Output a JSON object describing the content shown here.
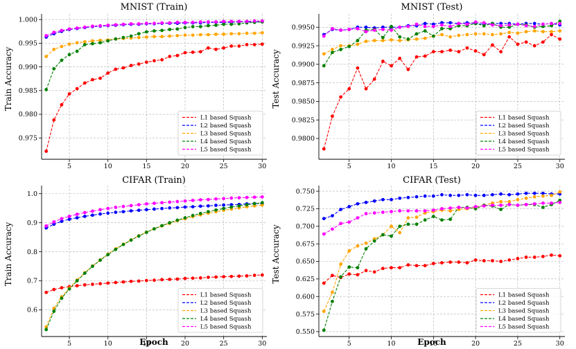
{
  "colors": {
    "L1": "#ff0000",
    "L2": "#0000ff",
    "L3": "#ffa500",
    "L4": "#008000",
    "L5": "#ff00ff",
    "grid": "#b0b0b0"
  },
  "chart_data": [
    {
      "type": "line",
      "title": "MNIST (Train)",
      "xlabel": "",
      "ylabel": "Train Accuracy",
      "xlim": [
        1.4,
        30.6
      ],
      "ylim": [
        0.9705,
        1.0012
      ],
      "xticks": [
        5,
        10,
        15,
        20,
        25,
        30
      ],
      "yticks": [
        0.975,
        0.98,
        0.985,
        0.99,
        0.995,
        1.0
      ],
      "ytick_decimals": 3,
      "grid": true,
      "legend_position": "lower-right",
      "x": [
        2,
        3,
        4,
        5,
        6,
        7,
        8,
        9,
        10,
        11,
        12,
        13,
        14,
        15,
        16,
        17,
        18,
        19,
        20,
        21,
        22,
        23,
        24,
        25,
        26,
        27,
        28,
        29,
        30
      ],
      "series": [
        {
          "name": "L1 based Squash",
          "color_key": "L1",
          "values": [
            0.9722,
            0.9788,
            0.982,
            0.9843,
            0.9854,
            0.9866,
            0.9873,
            0.9876,
            0.9887,
            0.9895,
            0.9898,
            0.9903,
            0.9906,
            0.991,
            0.9913,
            0.9915,
            0.9922,
            0.9924,
            0.993,
            0.9931,
            0.9932,
            0.994,
            0.9937,
            0.994,
            0.9944,
            0.9944,
            0.9947,
            0.9947,
            0.9948
          ]
        },
        {
          "name": "L2 based Squash",
          "color_key": "L2",
          "values": [
            0.9963,
            0.997,
            0.9975,
            0.9979,
            0.9981,
            0.9983,
            0.9985,
            0.9986,
            0.9987,
            0.9988,
            0.9989,
            0.999,
            0.999,
            0.9991,
            0.9991,
            0.9992,
            0.9992,
            0.9992,
            0.9993,
            0.9993,
            0.9993,
            0.9994,
            0.9994,
            0.9994,
            0.9994,
            0.9995,
            0.9995,
            0.9995,
            0.9995
          ]
        },
        {
          "name": "L3 based Squash",
          "color_key": "L3",
          "values": [
            0.9922,
            0.9937,
            0.9943,
            0.9948,
            0.9951,
            0.9953,
            0.9955,
            0.9956,
            0.9957,
            0.9959,
            0.996,
            0.9961,
            0.9962,
            0.9963,
            0.9964,
            0.9964,
            0.9965,
            0.9966,
            0.9967,
            0.9967,
            0.9968,
            0.9968,
            0.9969,
            0.9969,
            0.997,
            0.997,
            0.9971,
            0.9971,
            0.9972
          ]
        },
        {
          "name": "L4 based Squash",
          "color_key": "L4",
          "values": [
            0.9852,
            0.9896,
            0.9914,
            0.9926,
            0.9933,
            0.9947,
            0.9949,
            0.9951,
            0.9955,
            0.9959,
            0.9962,
            0.9965,
            0.997,
            0.9974,
            0.9976,
            0.9977,
            0.9979,
            0.998,
            0.9983,
            0.9985,
            0.9985,
            0.9987,
            0.9988,
            0.999,
            0.999,
            0.9991,
            0.9993,
            0.9994,
            0.9995
          ]
        },
        {
          "name": "L5 based Squash",
          "color_key": "L5",
          "values": [
            0.9966,
            0.9973,
            0.9977,
            0.998,
            0.9982,
            0.9984,
            0.9986,
            0.9987,
            0.9988,
            0.9989,
            0.999,
            0.9991,
            0.9991,
            0.9992,
            0.9992,
            0.9993,
            0.9993,
            0.9994,
            0.9994,
            0.9994,
            0.9995,
            0.9995,
            0.9995,
            0.9996,
            0.9996,
            0.9996,
            0.9996,
            0.9997,
            0.9997
          ]
        }
      ]
    },
    {
      "type": "line",
      "title": "MNIST (Test)",
      "xlabel": "",
      "ylabel": "Test Accuracy",
      "xlim": [
        1.4,
        30.6
      ],
      "ylim": [
        0.9772,
        0.9968
      ],
      "xticks": [
        5,
        10,
        15,
        20,
        25,
        30
      ],
      "yticks": [
        0.98,
        0.9825,
        0.985,
        0.9875,
        0.99,
        0.9925,
        0.995
      ],
      "ytick_decimals": 4,
      "grid": true,
      "legend_position": "lower-right",
      "x": [
        2,
        3,
        4,
        5,
        6,
        7,
        8,
        9,
        10,
        11,
        12,
        13,
        14,
        15,
        16,
        17,
        18,
        19,
        20,
        21,
        22,
        23,
        24,
        25,
        26,
        27,
        28,
        29,
        30
      ],
      "series": [
        {
          "name": "L1 based Squash",
          "color_key": "L1",
          "values": [
            0.9786,
            0.983,
            0.9856,
            0.9867,
            0.9895,
            0.9867,
            0.988,
            0.9904,
            0.9898,
            0.9908,
            0.9893,
            0.991,
            0.9911,
            0.9917,
            0.9917,
            0.9919,
            0.9917,
            0.9922,
            0.9918,
            0.9913,
            0.9926,
            0.9917,
            0.9937,
            0.9927,
            0.993,
            0.9925,
            0.993,
            0.994,
            0.9934
          ]
        },
        {
          "name": "L2 based Squash",
          "color_key": "L2",
          "values": [
            0.994,
            0.9947,
            0.9946,
            0.9947,
            0.995,
            0.995,
            0.9949,
            0.995,
            0.995,
            0.995,
            0.9952,
            0.9952,
            0.9955,
            0.9954,
            0.9956,
            0.9956,
            0.9955,
            0.9956,
            0.9955,
            0.9954,
            0.9955,
            0.9955,
            0.9955,
            0.9954,
            0.9955,
            0.9955,
            0.9954,
            0.9955,
            0.9953
          ]
        },
        {
          "name": "L3 based Squash",
          "color_key": "L3",
          "values": [
            0.9914,
            0.992,
            0.9925,
            0.9925,
            0.9927,
            0.9931,
            0.9932,
            0.9932,
            0.9933,
            0.9932,
            0.9933,
            0.9934,
            0.9935,
            0.9938,
            0.994,
            0.9937,
            0.9939,
            0.994,
            0.9941,
            0.9941,
            0.994,
            0.9941,
            0.9943,
            0.9942,
            0.9944,
            0.9945,
            0.9944,
            0.9944,
            0.9945
          ]
        },
        {
          "name": "L4 based Squash",
          "color_key": "L4",
          "values": [
            0.9898,
            0.9916,
            0.992,
            0.9924,
            0.9932,
            0.9946,
            0.9947,
            0.9936,
            0.9951,
            0.9937,
            0.9934,
            0.9941,
            0.9945,
            0.9938,
            0.9948,
            0.9948,
            0.9952,
            0.9952,
            0.9955,
            0.9952,
            0.9955,
            0.995,
            0.995,
            0.9954,
            0.9953,
            0.995,
            0.9951,
            0.9952,
            0.9958
          ]
        },
        {
          "name": "L5 based Squash",
          "color_key": "L5",
          "values": [
            0.9938,
            0.9948,
            0.9946,
            0.9947,
            0.9948,
            0.9944,
            0.9946,
            0.9947,
            0.9946,
            0.995,
            0.9951,
            0.9954,
            0.9951,
            0.9951,
            0.9953,
            0.9951,
            0.9955,
            0.9954,
            0.9957,
            0.9956,
            0.9953,
            0.9952,
            0.9953,
            0.9954,
            0.9952,
            0.9951,
            0.9954,
            0.9955,
            0.9955
          ]
        }
      ]
    },
    {
      "type": "line",
      "title": "CIFAR (Train)",
      "xlabel": "Epoch",
      "ylabel": "Train Accuracy",
      "xlim": [
        1.4,
        30.6
      ],
      "ylim": [
        0.508,
        1.028
      ],
      "xticks": [
        5,
        10,
        15,
        20,
        25,
        30
      ],
      "yticks": [
        0.6,
        0.7,
        0.8,
        0.9,
        1.0
      ],
      "ytick_decimals": 1,
      "grid": true,
      "legend_position": "lower-right",
      "x": [
        2,
        3,
        4,
        5,
        6,
        7,
        8,
        9,
        10,
        11,
        12,
        13,
        14,
        15,
        16,
        17,
        18,
        19,
        20,
        21,
        22,
        23,
        24,
        25,
        26,
        27,
        28,
        29,
        30
      ],
      "series": [
        {
          "name": "L1 based Squash",
          "color_key": "L1",
          "values": [
            0.66,
            0.67,
            0.676,
            0.68,
            0.683,
            0.686,
            0.688,
            0.69,
            0.692,
            0.694,
            0.696,
            0.698,
            0.699,
            0.701,
            0.702,
            0.704,
            0.705,
            0.706,
            0.708,
            0.709,
            0.71,
            0.712,
            0.713,
            0.714,
            0.715,
            0.716,
            0.717,
            0.719,
            0.72
          ]
        },
        {
          "name": "L2 based Squash",
          "color_key": "L2",
          "values": [
            0.882,
            0.895,
            0.905,
            0.912,
            0.917,
            0.922,
            0.926,
            0.93,
            0.933,
            0.936,
            0.938,
            0.941,
            0.943,
            0.945,
            0.947,
            0.949,
            0.951,
            0.952,
            0.954,
            0.955,
            0.957,
            0.958,
            0.96,
            0.961,
            0.962,
            0.963,
            0.965,
            0.966,
            0.967
          ]
        },
        {
          "name": "L3 based Squash",
          "color_key": "L3",
          "values": [
            0.541,
            0.605,
            0.645,
            0.675,
            0.703,
            0.728,
            0.751,
            0.772,
            0.792,
            0.81,
            0.826,
            0.841,
            0.855,
            0.868,
            0.879,
            0.889,
            0.898,
            0.907,
            0.914,
            0.921,
            0.927,
            0.933,
            0.938,
            0.943,
            0.947,
            0.951,
            0.955,
            0.958,
            0.961
          ]
        },
        {
          "name": "L4 based Squash",
          "color_key": "L4",
          "values": [
            0.532,
            0.595,
            0.64,
            0.672,
            0.7,
            0.726,
            0.75,
            0.771,
            0.79,
            0.808,
            0.825,
            0.84,
            0.854,
            0.867,
            0.879,
            0.89,
            0.9,
            0.909,
            0.917,
            0.925,
            0.932,
            0.938,
            0.944,
            0.949,
            0.954,
            0.958,
            0.962,
            0.966,
            0.969
          ]
        },
        {
          "name": "L5 based Squash",
          "color_key": "L5",
          "values": [
            0.889,
            0.903,
            0.914,
            0.922,
            0.929,
            0.935,
            0.94,
            0.945,
            0.949,
            0.953,
            0.956,
            0.959,
            0.962,
            0.965,
            0.967,
            0.969,
            0.971,
            0.973,
            0.975,
            0.977,
            0.979,
            0.98,
            0.982,
            0.983,
            0.985,
            0.986,
            0.987,
            0.988,
            0.989
          ]
        }
      ]
    },
    {
      "type": "line",
      "title": "CIFAR (Test)",
      "xlabel": "Epoch",
      "ylabel": "Test Accuracy",
      "xlim": [
        1.4,
        30.6
      ],
      "ylim": [
        0.543,
        0.758
      ],
      "xticks": [
        5,
        10,
        15,
        20,
        25,
        30
      ],
      "yticks": [
        0.55,
        0.575,
        0.6,
        0.625,
        0.65,
        0.675,
        0.7,
        0.725,
        0.75
      ],
      "ytick_decimals": 3,
      "grid": true,
      "legend_position": "lower-right",
      "x": [
        2,
        3,
        4,
        5,
        6,
        7,
        8,
        9,
        10,
        11,
        12,
        13,
        14,
        15,
        16,
        17,
        18,
        19,
        20,
        21,
        22,
        23,
        24,
        25,
        26,
        27,
        28,
        29,
        30
      ],
      "series": [
        {
          "name": "L1 based Squash",
          "color_key": "L1",
          "values": [
            0.619,
            0.63,
            0.627,
            0.632,
            0.631,
            0.637,
            0.635,
            0.64,
            0.641,
            0.641,
            0.645,
            0.644,
            0.644,
            0.647,
            0.648,
            0.649,
            0.649,
            0.648,
            0.652,
            0.651,
            0.651,
            0.65,
            0.652,
            0.654,
            0.656,
            0.656,
            0.657,
            0.659,
            0.658
          ]
        },
        {
          "name": "L2 based Squash",
          "color_key": "L2",
          "values": [
            0.711,
            0.715,
            0.724,
            0.728,
            0.732,
            0.734,
            0.736,
            0.738,
            0.738,
            0.74,
            0.741,
            0.742,
            0.743,
            0.743,
            0.745,
            0.744,
            0.744,
            0.745,
            0.744,
            0.744,
            0.745,
            0.746,
            0.745,
            0.746,
            0.747,
            0.747,
            0.747,
            0.746,
            0.746
          ]
        },
        {
          "name": "L3 based Squash",
          "color_key": "L3",
          "values": [
            0.579,
            0.606,
            0.646,
            0.665,
            0.672,
            0.676,
            0.682,
            0.688,
            0.7,
            0.691,
            0.712,
            0.713,
            0.719,
            0.721,
            0.723,
            0.722,
            0.724,
            0.725,
            0.727,
            0.73,
            0.733,
            0.735,
            0.735,
            0.738,
            0.74,
            0.742,
            0.743,
            0.744,
            0.749
          ]
        },
        {
          "name": "L4 based Squash",
          "color_key": "L4",
          "values": [
            0.552,
            0.593,
            0.628,
            0.642,
            0.641,
            0.668,
            0.679,
            0.688,
            0.686,
            0.7,
            0.703,
            0.703,
            0.709,
            0.714,
            0.709,
            0.71,
            0.727,
            0.727,
            0.725,
            0.73,
            0.729,
            0.724,
            0.731,
            0.73,
            0.731,
            0.731,
            0.727,
            0.731,
            0.737
          ]
        },
        {
          "name": "L5 based Squash",
          "color_key": "L5",
          "values": [
            0.689,
            0.696,
            0.704,
            0.706,
            0.712,
            0.718,
            0.719,
            0.72,
            0.721,
            0.722,
            0.722,
            0.722,
            0.722,
            0.723,
            0.725,
            0.726,
            0.727,
            0.726,
            0.728,
            0.729,
            0.73,
            0.73,
            0.731,
            0.73,
            0.731,
            0.732,
            0.733,
            0.733,
            0.734
          ]
        }
      ]
    }
  ]
}
